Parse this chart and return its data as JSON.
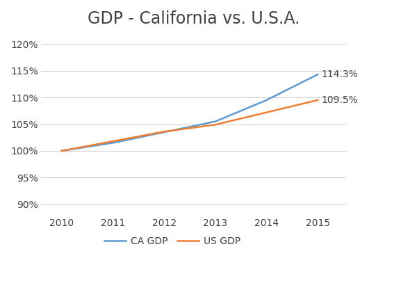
{
  "title": "GDP - California vs. U.S.A.",
  "years": [
    2010,
    2011,
    2012,
    2013,
    2014,
    2015
  ],
  "ca_gdp": [
    100.0,
    101.5,
    103.5,
    105.5,
    109.5,
    114.3
  ],
  "us_gdp": [
    100.0,
    101.8,
    103.6,
    104.9,
    107.2,
    109.5
  ],
  "ca_label": "CA GDP",
  "us_label": "US GDP",
  "ca_color": "#5B9BD5",
  "us_color": "#ED7D31",
  "ca_end_label": "114.3%",
  "us_end_label": "109.5%",
  "ylim_min": 88,
  "ylim_max": 122,
  "yticks": [
    90,
    95,
    100,
    105,
    110,
    115,
    120
  ],
  "background_color": "#ffffff",
  "grid_color": "#d3d3d3",
  "title_fontsize": 17,
  "tick_fontsize": 10,
  "legend_fontsize": 10,
  "line_width": 1.8
}
